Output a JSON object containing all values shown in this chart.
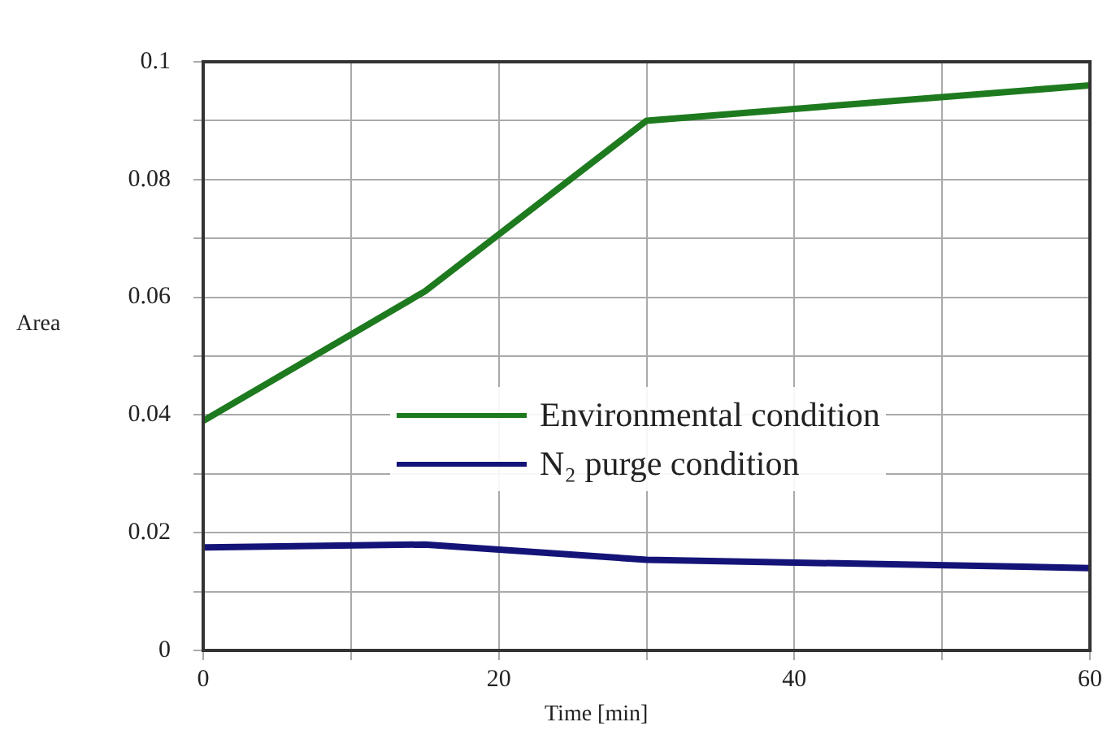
{
  "chart_data": {
    "type": "line",
    "xlabel": "Time [min]",
    "ylabel": "Area",
    "xlim": [
      0,
      60
    ],
    "xticks": [
      0,
      {
        "value": 10,
        "label": null
      },
      20,
      {
        "value": 30,
        "label": null
      },
      40,
      {
        "value": 50,
        "label": null
      },
      60
    ],
    "ylim": [
      0,
      0.1
    ],
    "yticks": [
      0,
      {
        "value": 0.01,
        "label": null
      },
      0.02,
      {
        "value": 0.03,
        "label": null
      },
      0.04,
      {
        "value": 0.05,
        "label": null
      },
      0.06,
      {
        "value": 0.07,
        "label": null
      },
      0.08,
      {
        "value": 0.09,
        "label": null
      },
      0.1
    ],
    "grid": true,
    "legend": "right",
    "marker": "none",
    "line_style": "solid",
    "series": [
      {
        "name": "Environmental condition",
        "color": "#1e7a1e",
        "x": [
          0,
          15,
          30,
          60
        ],
        "values": [
          0.039,
          0.061,
          0.09,
          0.096
        ]
      },
      {
        "name": "N₂ purge condition",
        "color": "#141478",
        "x": [
          0,
          15,
          30,
          60
        ],
        "values": [
          0.0175,
          0.018,
          0.0154,
          0.014
        ]
      }
    ]
  }
}
